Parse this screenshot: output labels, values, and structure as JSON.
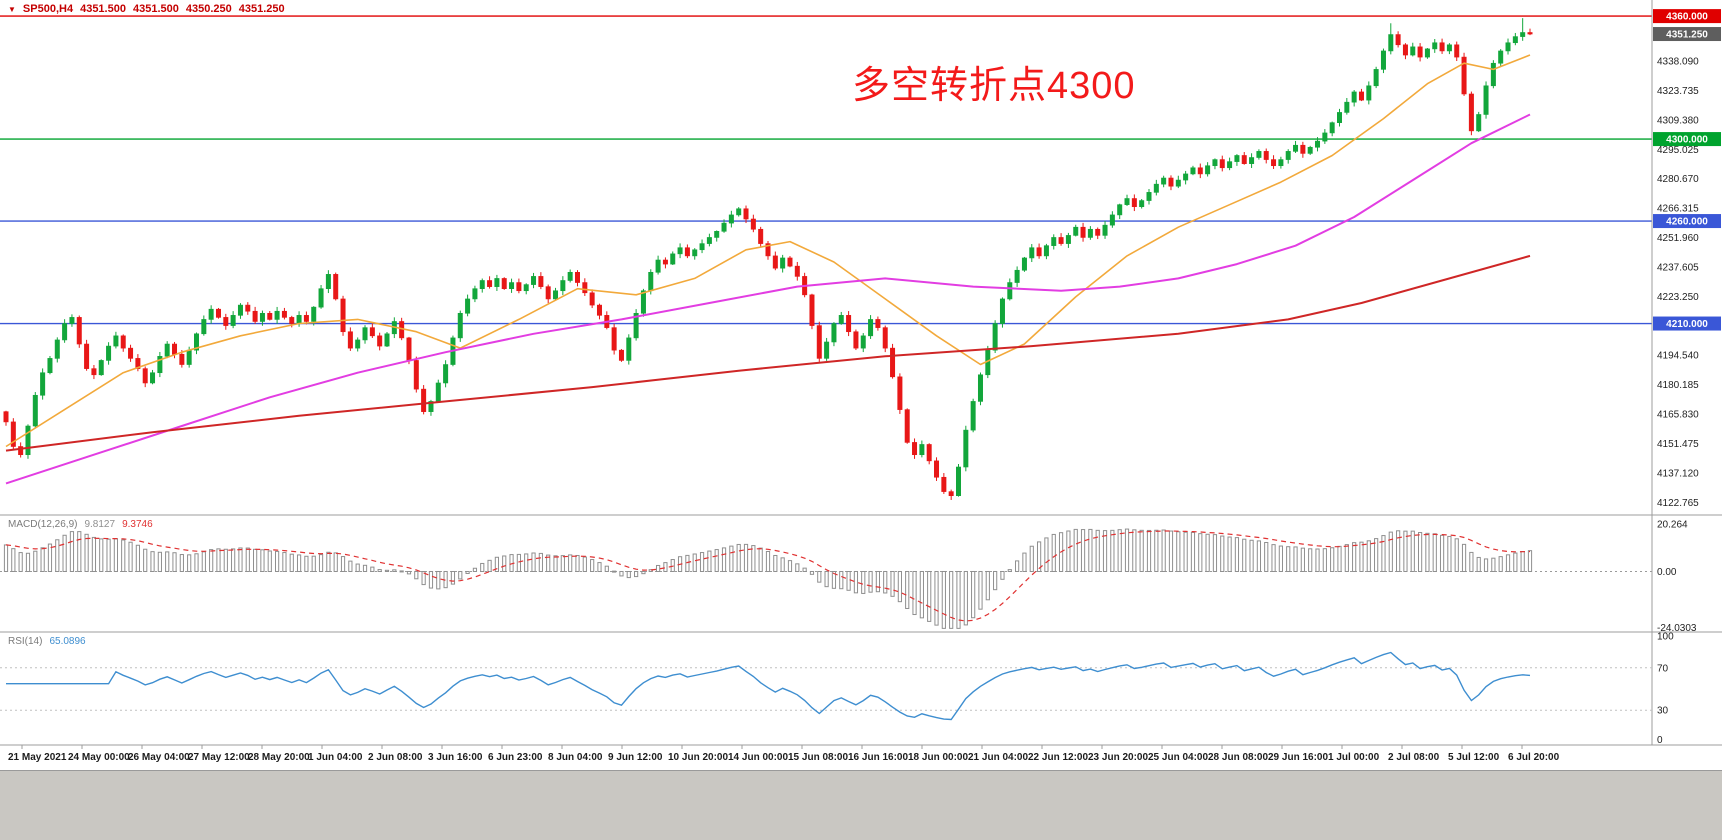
{
  "header": {
    "symbol_marker_icon": "▼",
    "symbol": "SP500,H4",
    "ohlc": {
      "open": "4351.500",
      "high": "4351.500",
      "low": "4350.250",
      "close": "4351.250"
    },
    "color": "#c40000"
  },
  "annotation": {
    "text": "多空转折点4300",
    "color": "#f31a1a"
  },
  "price_scale": {
    "ticks": [
      "4338.090",
      "4323.735",
      "4309.380",
      "4295.025",
      "4280.670",
      "4266.315",
      "4251.960",
      "4237.605",
      "4223.250",
      "4208.895",
      "4194.540",
      "4180.185",
      "4165.830",
      "4151.475",
      "4137.120",
      "4122.765"
    ],
    "badges": [
      {
        "label": "4360.000",
        "value": 4360,
        "bg": "#e00000"
      },
      {
        "label": "4351.250",
        "value": 4351.25,
        "bg": "#5e5e5e"
      },
      {
        "label": "4300.000",
        "value": 4300,
        "bg": "#00a32e"
      },
      {
        "label": "4260.000",
        "value": 4260,
        "bg": "#3a57d7"
      },
      {
        "label": "4210.000",
        "value": 4210,
        "bg": "#3a57d7"
      }
    ]
  },
  "indicators": {
    "macd": {
      "label": "MACD(12,26,9)",
      "value_main": "9.8127",
      "value_signal": "9.3746",
      "params": {
        "fast": 12,
        "slow": 26,
        "signal": 9
      },
      "range": {
        "max": 22,
        "min": -25
      },
      "scale_labels": [
        {
          "text": "20.264",
          "value": 20.264
        },
        {
          "text": "0.00",
          "value": 0
        },
        {
          "text": "-24.0303",
          "value": -24.0303
        }
      ],
      "histogram_color": "#8f8f8f",
      "signal_color": "#e03131"
    },
    "rsi": {
      "label": "RSI(14)",
      "value": "65.0896",
      "period": 14,
      "levels": [
        70,
        30
      ],
      "scale_labels": [
        {
          "text": "100",
          "value": 100
        },
        {
          "text": "70",
          "value": 70
        },
        {
          "text": "30",
          "value": 30
        },
        {
          "text": "0",
          "value": 0
        }
      ],
      "line_color": "#3e8ed0",
      "range": {
        "max": 100,
        "min": 0
      }
    }
  },
  "chart_data": {
    "type": "candlestick",
    "symbol": "SP500",
    "timeframe": "H4",
    "ylim": [
      4120,
      4362
    ],
    "x_tick_labels": [
      "21 May 2021",
      "24 May 00:00",
      "26 May 04:00",
      "27 May 12:00",
      "28 May 20:00",
      "1 Jun 04:00",
      "2 Jun 08:00",
      "3 Jun 16:00",
      "6 Jun 23:00",
      "8 Jun 04:00",
      "9 Jun 12:00",
      "10 Jun 20:00",
      "14 Jun 00:00",
      "15 Jun 08:00",
      "16 Jun 16:00",
      "18 Jun 00:00",
      "21 Jun 04:00",
      "22 Jun 12:00",
      "23 Jun 20:00",
      "25 Jun 04:00",
      "28 Jun 08:00",
      "29 Jun 16:00",
      "1 Jul 00:00",
      "2 Jul 08:00",
      "5 Jul 12:00",
      "6 Jul 20:00"
    ],
    "open_first": 4167,
    "closes": [
      4162,
      4150,
      4146,
      4160,
      4175,
      4186,
      4193,
      4202,
      4210,
      4213,
      4200,
      4188,
      4185,
      4192,
      4199,
      4204,
      4198,
      4193,
      4188,
      4181,
      4186,
      4194,
      4200,
      4195,
      4190,
      4197,
      4205,
      4212,
      4217,
      4213,
      4209,
      4214,
      4219,
      4216,
      4211,
      4215,
      4212,
      4216,
      4213,
      4210,
      4214,
      4211,
      4218,
      4227,
      4234,
      4222,
      4206,
      4198,
      4202,
      4208,
      4204,
      4199,
      4205,
      4211,
      4203,
      4192,
      4178,
      4167,
      4172,
      4181,
      4190,
      4203,
      4215,
      4222,
      4227,
      4231,
      4228,
      4232,
      4227,
      4230,
      4226,
      4229,
      4233,
      4228,
      4222,
      4226,
      4231,
      4235,
      4230,
      4225,
      4219,
      4214,
      4208,
      4197,
      4192,
      4203,
      4215,
      4226,
      4235,
      4241,
      4239,
      4244,
      4247,
      4243,
      4246,
      4249,
      4252,
      4255,
      4259,
      4263,
      4266,
      4261,
      4256,
      4249,
      4243,
      4237,
      4242,
      4238,
      4233,
      4224,
      4209,
      4193,
      4201,
      4210,
      4214,
      4206,
      4198,
      4204,
      4212,
      4208,
      4198,
      4184,
      4168,
      4152,
      4146,
      4151,
      4143,
      4135,
      4128,
      4126,
      4140,
      4158,
      4172,
      4185,
      4197,
      4210,
      4222,
      4230,
      4236,
      4242,
      4247,
      4243,
      4248,
      4252,
      4249,
      4253,
      4257,
      4252,
      4256,
      4253,
      4258,
      4263,
      4268,
      4271,
      4267,
      4270,
      4274,
      4278,
      4281,
      4277,
      4280,
      4283,
      4286,
      4283,
      4287,
      4290,
      4286,
      4289,
      4292,
      4288,
      4291,
      4294,
      4290,
      4287,
      4290,
      4294,
      4297,
      4293,
      4296,
      4299,
      4303,
      4308,
      4313,
      4318,
      4323,
      4319,
      4326,
      4334,
      4343,
      4351,
      4346,
      4341,
      4345,
      4340,
      4344,
      4347,
      4343,
      4346,
      4340,
      4322,
      4304,
      4312,
      4326,
      4337,
      4343,
      4347,
      4350,
      4352,
      4351.25
    ],
    "wick_overrides": {
      "189": 4356.5,
      "207": 4359
    },
    "up_color": "#12a63b",
    "down_color": "#e81717",
    "horizontal_levels": [
      {
        "value": 4360,
        "color": "#e00000"
      },
      {
        "value": 4300,
        "color": "#00a32e"
      },
      {
        "value": 4260,
        "color": "#3a57d7"
      },
      {
        "value": 4210,
        "color": "#3a57d7"
      }
    ],
    "moving_averages": [
      {
        "name": "ma-fast",
        "color": "#f2a93b",
        "points": [
          [
            0,
            4150
          ],
          [
            8,
            4168
          ],
          [
            16,
            4186
          ],
          [
            24,
            4196
          ],
          [
            32,
            4204
          ],
          [
            40,
            4210
          ],
          [
            48,
            4212
          ],
          [
            56,
            4206
          ],
          [
            62,
            4198
          ],
          [
            70,
            4212
          ],
          [
            78,
            4227
          ],
          [
            86,
            4224
          ],
          [
            94,
            4232
          ],
          [
            101,
            4246
          ],
          [
            107,
            4250
          ],
          [
            113,
            4240
          ],
          [
            120,
            4222
          ],
          [
            127,
            4204
          ],
          [
            133,
            4190
          ],
          [
            139,
            4200
          ],
          [
            146,
            4223
          ],
          [
            153,
            4243
          ],
          [
            160,
            4257
          ],
          [
            167,
            4268
          ],
          [
            174,
            4279
          ],
          [
            181,
            4292
          ],
          [
            188,
            4310
          ],
          [
            194,
            4327
          ],
          [
            199,
            4337
          ],
          [
            203,
            4334
          ],
          [
            208,
            4341
          ]
        ]
      },
      {
        "name": "ma-mid",
        "color": "#e23de2",
        "points": [
          [
            0,
            4132
          ],
          [
            12,
            4146
          ],
          [
            24,
            4160
          ],
          [
            36,
            4174
          ],
          [
            48,
            4186
          ],
          [
            60,
            4196
          ],
          [
            72,
            4205
          ],
          [
            84,
            4212
          ],
          [
            96,
            4220
          ],
          [
            108,
            4228
          ],
          [
            120,
            4232
          ],
          [
            132,
            4228
          ],
          [
            144,
            4226
          ],
          [
            152,
            4228
          ],
          [
            160,
            4232
          ],
          [
            168,
            4239
          ],
          [
            176,
            4248
          ],
          [
            184,
            4262
          ],
          [
            192,
            4280
          ],
          [
            200,
            4298
          ],
          [
            208,
            4312
          ]
        ]
      },
      {
        "name": "ma-slow",
        "color": "#cf2626",
        "points": [
          [
            0,
            4148
          ],
          [
            20,
            4157
          ],
          [
            40,
            4165
          ],
          [
            60,
            4172
          ],
          [
            80,
            4179
          ],
          [
            100,
            4187
          ],
          [
            120,
            4194
          ],
          [
            140,
            4199
          ],
          [
            160,
            4205
          ],
          [
            175,
            4212
          ],
          [
            185,
            4220
          ],
          [
            195,
            4230
          ],
          [
            208,
            4243
          ]
        ]
      }
    ]
  }
}
